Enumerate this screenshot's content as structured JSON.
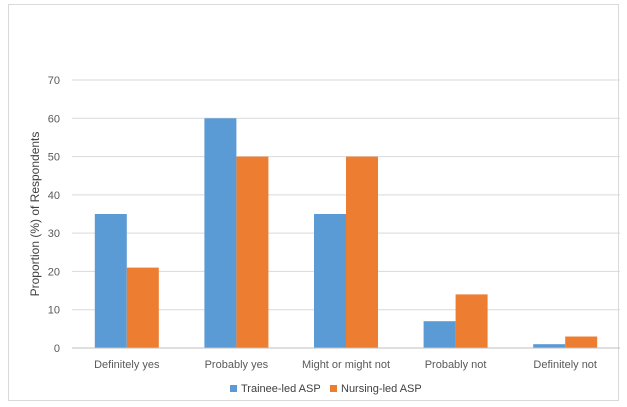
{
  "chart_data": {
    "type": "bar",
    "title": "",
    "xlabel": "",
    "ylabel": "Proportion (%) of Respondents",
    "ylim": [
      0,
      70
    ],
    "yticks": [
      0,
      10,
      20,
      30,
      40,
      50,
      60,
      70
    ],
    "grid": true,
    "legend_position": "bottom",
    "categories": [
      "Definitely yes",
      "Probably yes",
      "Might or might not",
      "Probably not",
      "Definitely not"
    ],
    "series": [
      {
        "name": "Trainee-led ASP",
        "color": "#5b9bd5",
        "values": [
          35,
          60,
          35,
          7,
          1
        ]
      },
      {
        "name": "Nursing-led ASP",
        "color": "#ed7d31",
        "values": [
          21,
          50,
          50,
          14,
          3
        ]
      }
    ]
  }
}
